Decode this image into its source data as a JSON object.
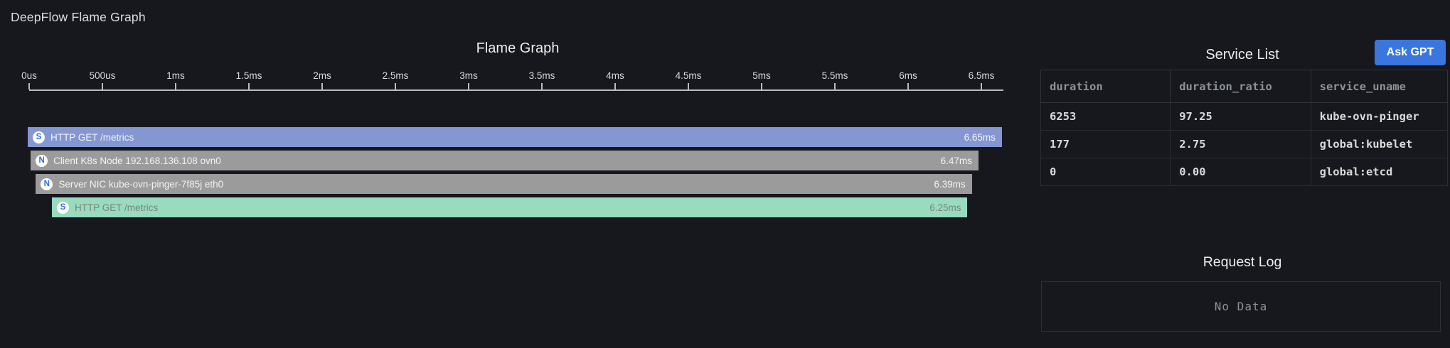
{
  "page": {
    "title": "DeepFlow Flame Graph"
  },
  "flame": {
    "title": "Flame Graph",
    "axis_ticks": [
      "0us",
      "500us",
      "1ms",
      "1.5ms",
      "2ms",
      "2.5ms",
      "3ms",
      "3.5ms",
      "4ms",
      "4.5ms",
      "5ms",
      "5.5ms",
      "6ms",
      "6.5ms"
    ],
    "axis_tick_interval_ms": 0.5,
    "bars": [
      {
        "icon": "S",
        "label": "HTTP GET /metrics",
        "duration_label": "6.65ms",
        "duration_ms": 6.65,
        "start_ms": 0.0,
        "color": "#8497d2",
        "text_color": "#f2f3f5"
      },
      {
        "icon": "N",
        "label": "Client K8s Node 192.168.136.108 ovn0",
        "duration_label": "6.47ms",
        "duration_ms": 6.47,
        "start_ms": 0.02,
        "color": "#9b9b9b",
        "text_color": "#f2f3f5"
      },
      {
        "icon": "N",
        "label": "Server NIC kube-ovn-pinger-7f85j eth0",
        "duration_label": "6.39ms",
        "duration_ms": 6.39,
        "start_ms": 0.055,
        "color": "#9b9b9b",
        "text_color": "#f2f3f5"
      },
      {
        "icon": "S",
        "label": "HTTP GET /metrics",
        "duration_label": "6.25ms",
        "duration_ms": 6.25,
        "start_ms": 0.165,
        "color": "#99dbbf",
        "text_color": "#79867f"
      }
    ]
  },
  "service_list": {
    "title": "Service List",
    "ask_gpt_label": "Ask GPT",
    "columns": [
      "duration",
      "duration_ratio",
      "service_uname"
    ],
    "rows": [
      [
        "6253",
        "97.25",
        "kube-ovn-pinger"
      ],
      [
        "177",
        "2.75",
        "global:kubelet"
      ],
      [
        "0",
        "0.00",
        "global:etcd"
      ]
    ]
  },
  "request_log": {
    "title": "Request Log",
    "empty_text": "No Data"
  },
  "colors": {
    "background": "#16181d",
    "bar_blue": "#8497d2",
    "bar_gray": "#9b9b9b",
    "bar_green": "#99dbbf",
    "icon_letter_blue": "#2e6fe0",
    "ask_gpt_blue": "#3b76e0"
  }
}
